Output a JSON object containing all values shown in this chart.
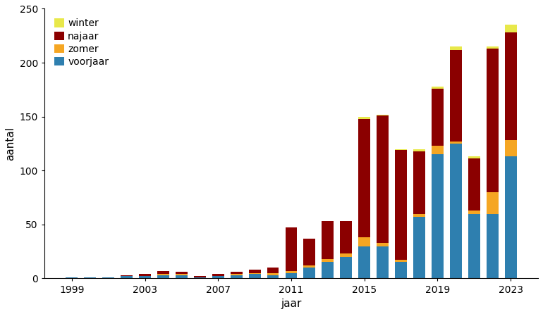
{
  "years": [
    1999,
    2000,
    2001,
    2002,
    2003,
    2004,
    2005,
    2006,
    2007,
    2008,
    2009,
    2010,
    2011,
    2012,
    2013,
    2014,
    2015,
    2016,
    2017,
    2018,
    2019,
    2020,
    2021,
    2022,
    2023
  ],
  "voorjaar": [
    1,
    1,
    1,
    2,
    2,
    3,
    3,
    1,
    2,
    3,
    4,
    3,
    5,
    10,
    15,
    20,
    30,
    30,
    15,
    57,
    115,
    125,
    60,
    60,
    113
  ],
  "zomer": [
    0,
    0,
    0,
    0,
    0,
    1,
    1,
    0,
    0,
    1,
    1,
    2,
    2,
    2,
    3,
    3,
    8,
    3,
    2,
    3,
    8,
    2,
    3,
    20,
    15
  ],
  "najaar": [
    0,
    0,
    0,
    1,
    2,
    3,
    2,
    1,
    2,
    2,
    3,
    5,
    40,
    25,
    35,
    30,
    110,
    118,
    102,
    58,
    53,
    85,
    48,
    133,
    100
  ],
  "winter": [
    0,
    0,
    0,
    0,
    0,
    0,
    0,
    0,
    0,
    0,
    0,
    0,
    0,
    0,
    0,
    0,
    2,
    1,
    1,
    2,
    2,
    3,
    2,
    2,
    7
  ],
  "colors": {
    "voorjaar": "#2E7FAF",
    "zomer": "#F5A623",
    "najaar": "#8B0000",
    "winter": "#E8E84A"
  },
  "ylabel": "aantal",
  "xlabel": "jaar",
  "ylim": [
    0,
    250
  ],
  "yticks": [
    0,
    50,
    100,
    150,
    200,
    250
  ],
  "xticks": [
    1999,
    2003,
    2007,
    2011,
    2015,
    2019,
    2023
  ],
  "background_color": "#ffffff"
}
